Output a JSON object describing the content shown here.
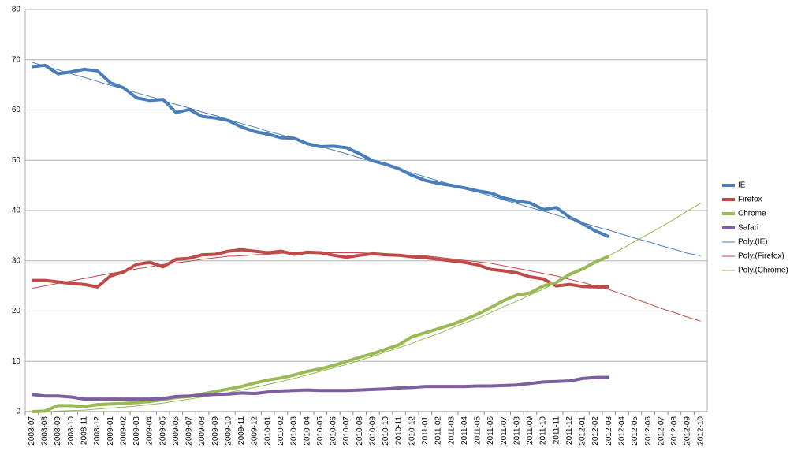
{
  "chart_data": {
    "type": "line",
    "categories": [
      "2008-07",
      "2008-08",
      "2008-09",
      "2008-10",
      "2008-11",
      "2008-12",
      "2009-01",
      "2009-02",
      "2009-03",
      "2009-04",
      "2009-05",
      "2009-06",
      "2009-07",
      "2009-08",
      "2009-09",
      "2009-10",
      "2009-11",
      "2009-12",
      "2010-01",
      "2010-02",
      "2010-03",
      "2010-04",
      "2010-05",
      "2010-06",
      "2010-07",
      "2010-08",
      "2010-09",
      "2010-10",
      "2010-11",
      "2010-12",
      "2011-01",
      "2011-02",
      "2011-03",
      "2011-04",
      "2011-05",
      "2011-06",
      "2011-07",
      "2011-08",
      "2011-09",
      "2011-10",
      "2011-11",
      "2011-12",
      "2012-01",
      "2012-02",
      "2012-03",
      "2012-04",
      "2012-05",
      "2012-06",
      "2012-07",
      "2012-08",
      "2012-09",
      "2012-10"
    ],
    "ylim": [
      0,
      80
    ],
    "yticks": [
      0,
      10,
      20,
      30,
      40,
      50,
      60,
      70,
      80
    ],
    "grid": true,
    "legend": "right",
    "series": [
      {
        "name": "IE",
        "color": "#4a7ebb",
        "values": [
          68.6,
          68.9,
          67.2,
          67.6,
          68.1,
          67.8,
          65.4,
          64.4,
          62.4,
          61.9,
          62.1,
          59.5,
          60.1,
          58.7,
          58.4,
          57.9,
          56.6,
          55.7,
          55.2,
          54.5,
          54.4,
          53.3,
          52.7,
          52.8,
          52.5,
          51.3,
          49.9,
          49.2,
          48.3,
          47.0,
          46.0,
          45.4,
          45.0,
          44.5,
          43.9,
          43.5,
          42.5,
          41.9,
          41.5,
          40.2,
          40.6,
          38.7,
          37.4,
          35.9,
          34.8,
          null,
          null,
          null,
          null,
          null,
          null,
          null
        ]
      },
      {
        "name": "Firefox",
        "color": "#be4b48",
        "values": [
          26.1,
          26.1,
          25.8,
          25.5,
          25.3,
          24.8,
          27.0,
          27.8,
          29.3,
          29.7,
          28.8,
          30.3,
          30.5,
          31.2,
          31.3,
          31.9,
          32.2,
          31.9,
          31.6,
          31.9,
          31.3,
          31.7,
          31.6,
          31.1,
          30.7,
          31.1,
          31.4,
          31.2,
          31.1,
          30.8,
          30.6,
          30.3,
          30.0,
          29.7,
          29.2,
          28.3,
          28.0,
          27.6,
          26.8,
          26.4,
          25.0,
          25.3,
          24.9,
          24.8,
          24.8,
          null,
          null,
          null,
          null,
          null,
          null,
          null
        ]
      },
      {
        "name": "Chrome",
        "color": "#98b954",
        "values": [
          0.0,
          0.1,
          1.2,
          1.2,
          1.0,
          1.4,
          1.5,
          1.6,
          1.8,
          2.0,
          2.4,
          2.8,
          3.0,
          3.5,
          4.0,
          4.5,
          5.0,
          5.7,
          6.3,
          6.7,
          7.3,
          8.0,
          8.5,
          9.2,
          10.0,
          10.8,
          11.5,
          12.4,
          13.3,
          14.9,
          15.7,
          16.5,
          17.3,
          18.3,
          19.4,
          20.7,
          22.1,
          23.2,
          23.6,
          25.0,
          25.7,
          27.3,
          28.4,
          29.8,
          30.9,
          null,
          null,
          null,
          null,
          null,
          null,
          null
        ]
      },
      {
        "name": "Safari",
        "color": "#7d5fa0",
        "values": [
          3.4,
          3.1,
          3.1,
          2.9,
          2.5,
          2.5,
          2.5,
          2.5,
          2.5,
          2.5,
          2.6,
          3.0,
          3.1,
          3.3,
          3.4,
          3.5,
          3.7,
          3.6,
          3.9,
          4.1,
          4.2,
          4.3,
          4.2,
          4.2,
          4.2,
          4.3,
          4.4,
          4.5,
          4.7,
          4.8,
          5.0,
          5.0,
          5.0,
          5.0,
          5.1,
          5.1,
          5.2,
          5.3,
          5.6,
          5.9,
          6.0,
          6.1,
          6.6,
          6.8,
          6.8,
          null,
          null,
          null,
          null,
          null,
          null,
          null
        ]
      },
      {
        "name": "Poly.(IE)",
        "color": "#4a7ebb",
        "trend": true,
        "values": [
          69.5,
          68.7,
          68.0,
          67.2,
          66.5,
          65.7,
          64.9,
          64.2,
          63.4,
          62.7,
          61.9,
          61.1,
          60.4,
          59.6,
          58.9,
          58.1,
          57.3,
          56.6,
          55.8,
          55.1,
          54.3,
          53.5,
          52.8,
          52.0,
          51.3,
          50.5,
          49.7,
          49.0,
          48.2,
          47.5,
          46.7,
          45.9,
          45.2,
          44.4,
          43.7,
          42.9,
          42.1,
          41.4,
          40.6,
          39.9,
          39.1,
          38.3,
          37.6,
          36.8,
          36.1,
          35.3,
          34.5,
          33.8,
          33.0,
          32.3,
          31.5,
          31.0
        ]
      },
      {
        "name": "Poly.(Firefox)",
        "color": "#be4b48",
        "trend": true,
        "values": [
          24.5,
          25.0,
          25.5,
          26.0,
          26.5,
          27.0,
          27.5,
          27.9,
          28.4,
          28.8,
          29.3,
          29.6,
          29.9,
          30.3,
          30.6,
          30.9,
          31.0,
          31.2,
          31.3,
          31.5,
          31.6,
          31.6,
          31.6,
          31.6,
          31.6,
          31.6,
          31.5,
          31.4,
          31.2,
          31.1,
          31.0,
          30.7,
          30.4,
          30.1,
          29.8,
          29.5,
          29.0,
          28.5,
          28.0,
          27.5,
          27.0,
          26.3,
          25.7,
          25.0,
          24.3,
          23.4,
          22.4,
          21.5,
          20.5,
          19.7,
          18.8,
          18.0
        ]
      },
      {
        "name": "Poly.(Chrome)",
        "color": "#98b954",
        "trend": true,
        "values": [
          0.0,
          0.0,
          0.1,
          0.2,
          0.3,
          0.5,
          0.7,
          0.9,
          1.1,
          1.4,
          1.7,
          2.1,
          2.5,
          2.9,
          3.3,
          3.8,
          4.3,
          4.8,
          5.4,
          6.0,
          6.6,
          7.3,
          8.0,
          8.7,
          9.4,
          10.2,
          11.0,
          11.9,
          12.7,
          13.6,
          14.6,
          15.5,
          16.6,
          17.6,
          18.6,
          19.7,
          20.9,
          22.0,
          23.2,
          24.4,
          25.7,
          27.0,
          28.3,
          29.6,
          31.0,
          32.4,
          33.9,
          35.3,
          36.8,
          38.3,
          39.9,
          41.5
        ]
      }
    ]
  }
}
